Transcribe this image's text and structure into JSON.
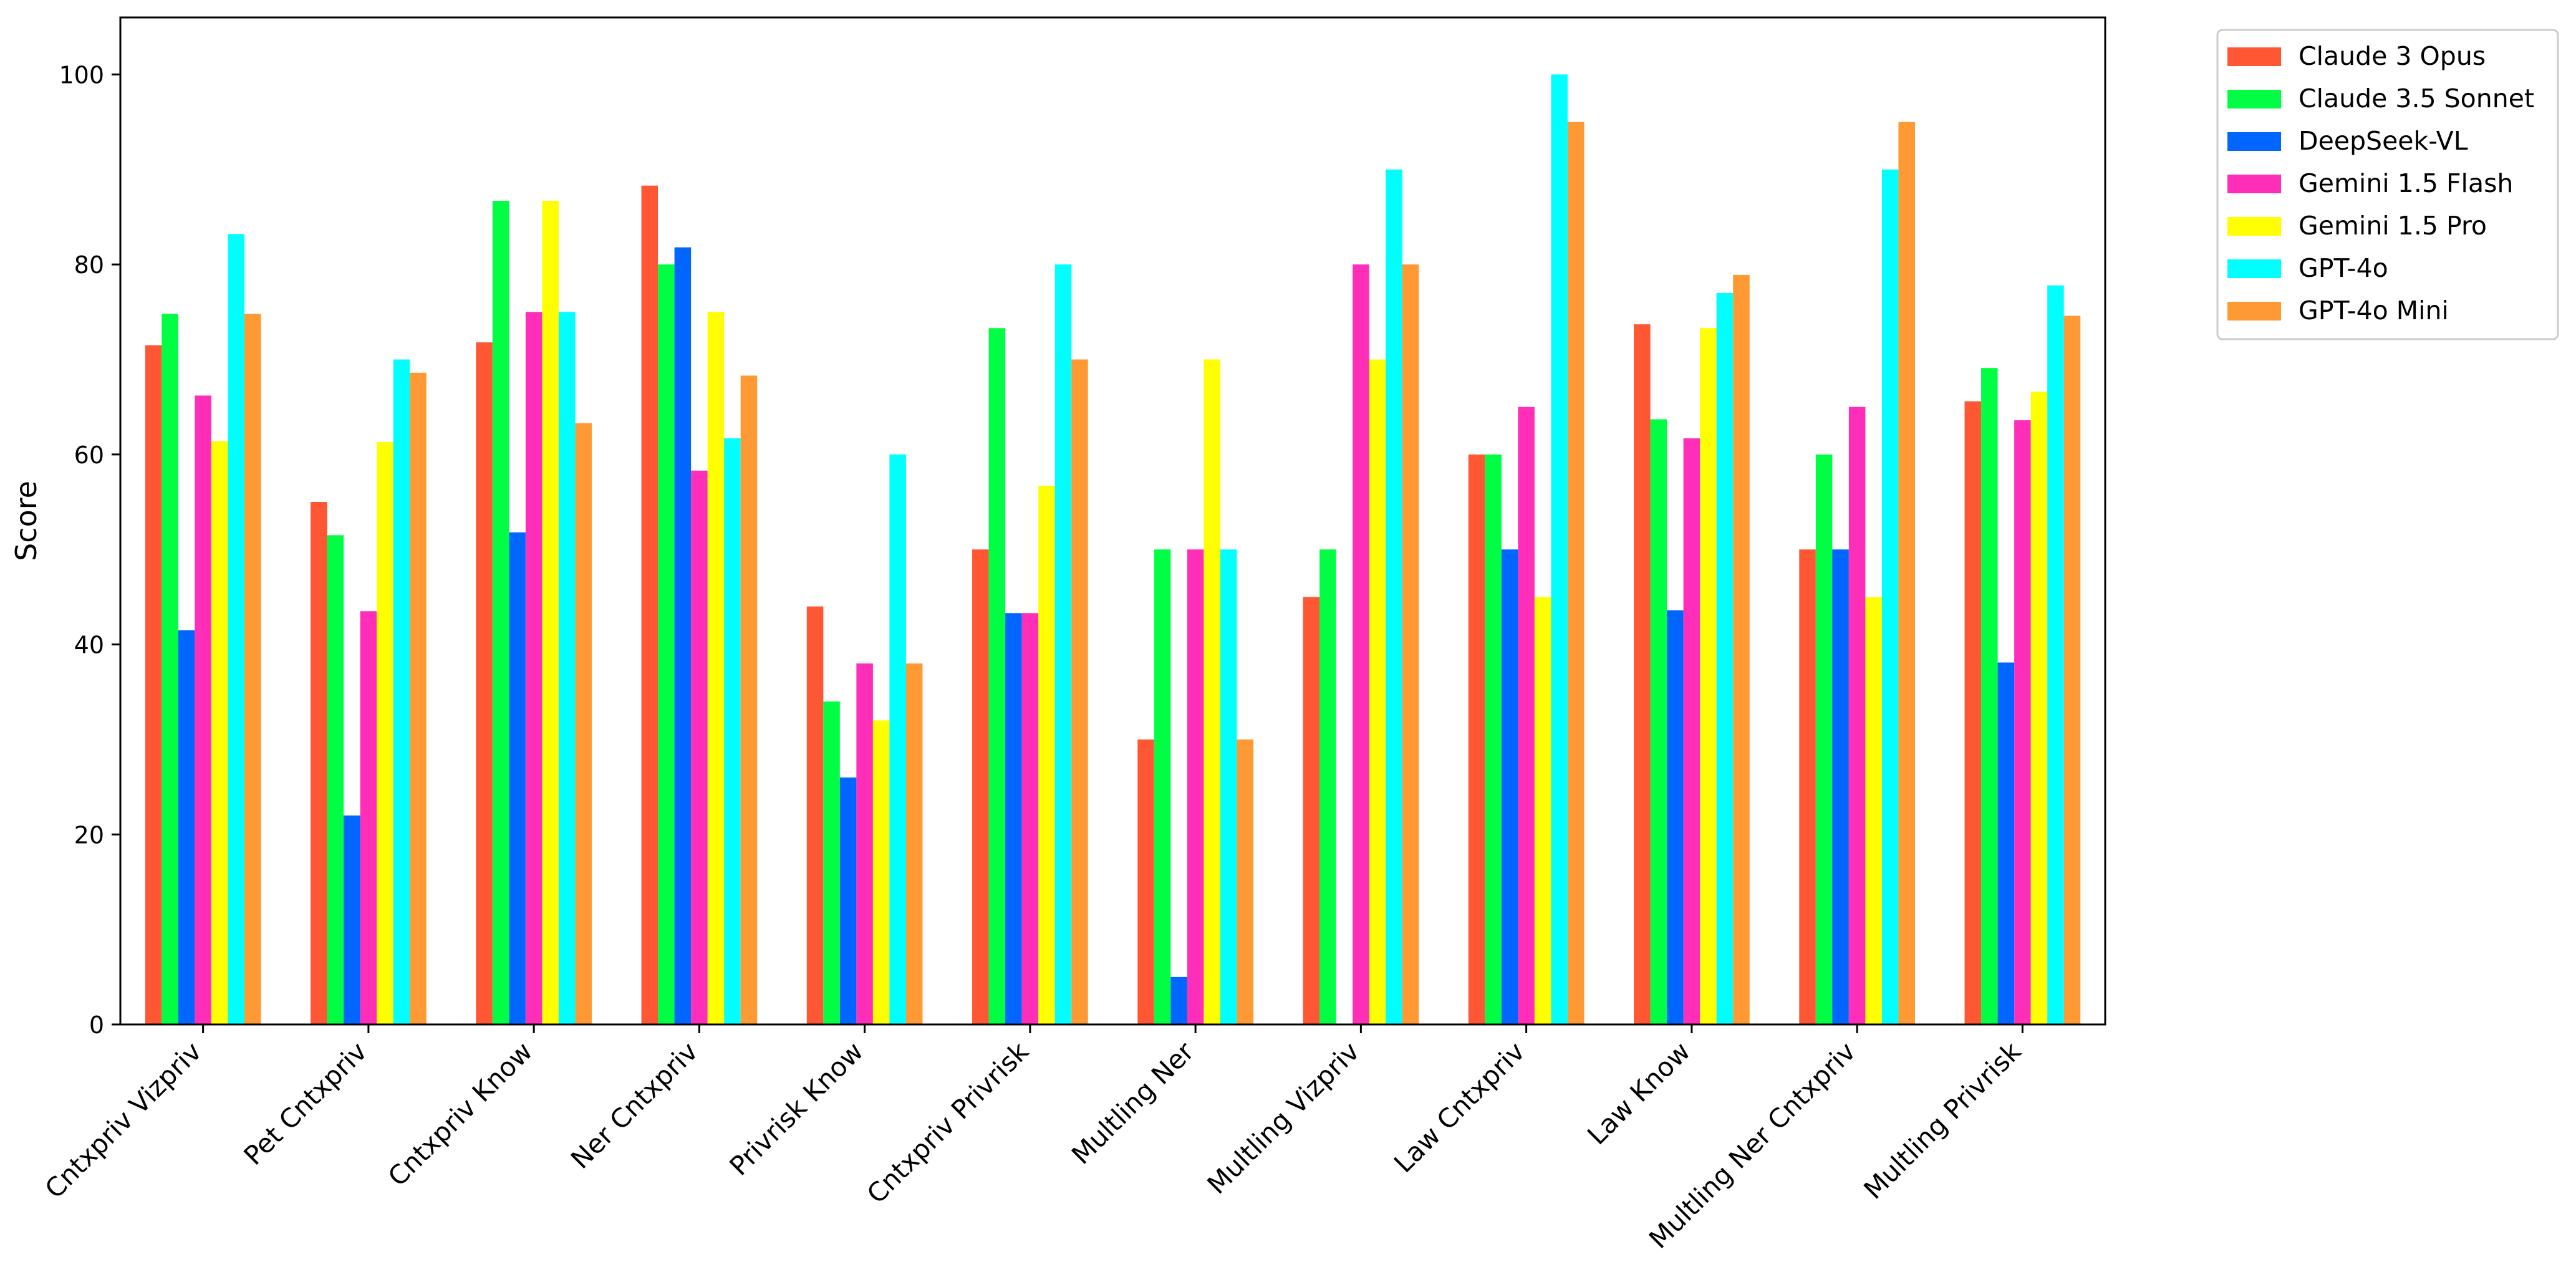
{
  "chart_data": {
    "type": "bar",
    "title": "",
    "xlabel": "",
    "ylabel": "Score",
    "ylim": [
      0,
      106
    ],
    "yticks": [
      0,
      20,
      40,
      60,
      80,
      100
    ],
    "grid": false,
    "legend_position": "outside-top-right",
    "categories": [
      "Cntxpriv Vizpriv",
      "Pet Cntxpriv",
      "Cntxpriv Know",
      "Ner Cntxpriv",
      "Privrisk Know",
      "Cntxpriv Privrisk",
      "Multling Ner",
      "Multling Vizpriv",
      "Law Cntxpriv",
      "Law Know",
      "Multling Ner Cntxpriv",
      "Multling Privrisk"
    ],
    "series": [
      {
        "name": "Claude 3 Opus",
        "color": "#ff5733",
        "values": [
          71.5,
          55,
          71.8,
          88.3,
          44,
          50,
          30,
          45,
          60,
          73.7,
          50,
          65.6
        ]
      },
      {
        "name": "Claude 3.5 Sonnet",
        "color": "#00ff44",
        "values": [
          74.8,
          51.5,
          86.7,
          80,
          34,
          73.3,
          50,
          50,
          60,
          63.7,
          60,
          69.1
        ]
      },
      {
        "name": "DeepSeek-VL",
        "color": "#0066ff",
        "values": [
          41.5,
          22,
          51.8,
          81.8,
          26,
          43.3,
          5,
          0,
          50,
          43.6,
          50,
          38.1
        ]
      },
      {
        "name": "Gemini 1.5 Flash",
        "color": "#ff2eb8",
        "values": [
          66.2,
          43.5,
          75,
          58.3,
          38,
          43.3,
          50,
          80,
          65,
          61.7,
          65,
          63.6
        ]
      },
      {
        "name": "Gemini 1.5 Pro",
        "color": "#ffff00",
        "values": [
          61.4,
          61.3,
          86.7,
          75,
          32,
          56.7,
          70,
          70,
          45,
          73.3,
          45,
          66.6
        ]
      },
      {
        "name": "GPT-4o",
        "color": "#00ffff",
        "values": [
          83.2,
          70,
          75,
          61.7,
          60,
          80,
          50,
          90,
          100,
          77,
          90,
          77.8
        ]
      },
      {
        "name": "GPT-4o Mini",
        "color": "#ff9933",
        "values": [
          74.8,
          68.6,
          63.3,
          68.3,
          38,
          70,
          30,
          80,
          95,
          78.9,
          95,
          74.6
        ]
      }
    ]
  }
}
